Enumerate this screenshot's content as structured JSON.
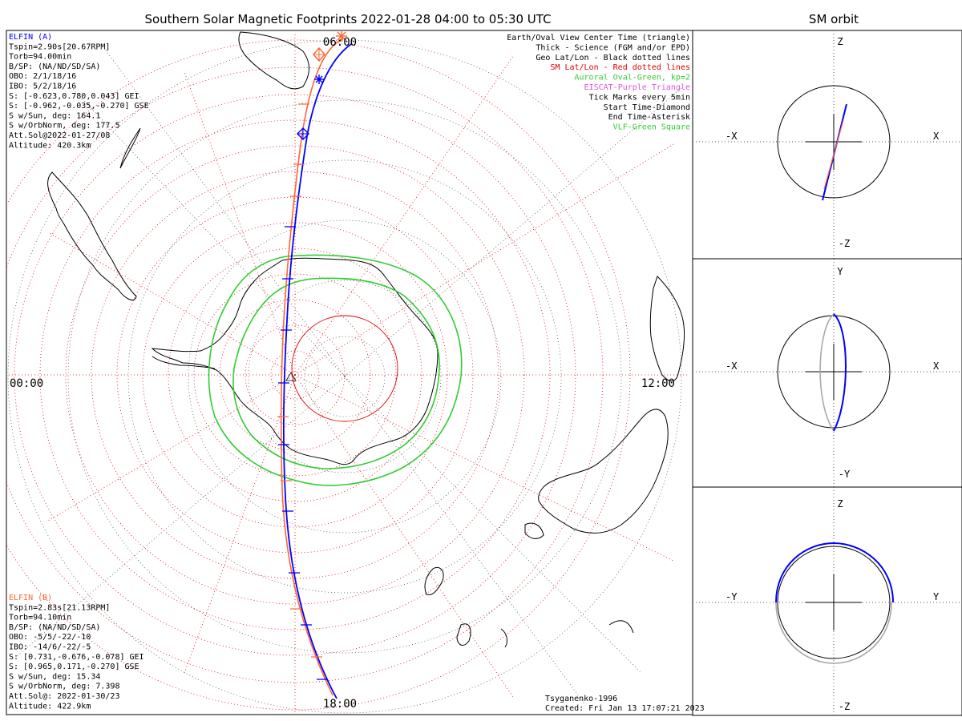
{
  "title": "Southern Solar Magnetic Footprints 2022-01-28 04:00 to 05:30 UTC",
  "orbit_title": "SM orbit",
  "map": {
    "labels": {
      "top": "06:00",
      "left": "00:00",
      "right": "12:00",
      "bottom": "18:00"
    },
    "legend": [
      {
        "text": "Earth/Oval View Center Time (triangle)",
        "color": "#000000"
      },
      {
        "text": "Thick - Science (FGM and/or EPD)",
        "color": "#000000"
      },
      {
        "text": "Geo Lat/Lon - Black dotted lines",
        "color": "#000000"
      },
      {
        "text": "SM Lat/Lon - Red dotted lines",
        "color": "#e00000"
      },
      {
        "text": "Auroral Oval-Green, kp=2",
        "color": "#33cc33"
      },
      {
        "text": "EISCAT-Purple Triangle",
        "color": "#dd55dd"
      },
      {
        "text": "Tick Marks every 5min",
        "color": "#000000"
      },
      {
        "text": "Start Time-Diamond",
        "color": "#000000"
      },
      {
        "text": "End Time-Asterisk",
        "color": "#000000"
      },
      {
        "text": "VLF-Green Square",
        "color": "#33cc33"
      }
    ],
    "elfin_a": {
      "name": "ELFIN (A)",
      "color": "#0000ff",
      "lines": [
        "Tspin=2.90s[20.67RPM]",
        "Torb=94.00min",
        "B/SP: (NA/ND/SD/SA)",
        "OBO: 2/1/18/16",
        "IBO: 5/2/18/16",
        "S: [-0.623,0.780,0.043] GEI",
        "S: [-0.962,-0.035,-0.270] GSE",
        "S w/Sun, deg: 164.1",
        "S w/OrbNorm, deg: 177.5",
        "Att.Sol@2022-01-27/08",
        "Altitude: 420.3km"
      ]
    },
    "elfin_b": {
      "name": "ELFIN (B)",
      "color": "#ff6633",
      "lines": [
        "Tspin=2.83s[21.13RPM]",
        "Torb=94.10min",
        "B/SP: (NA/ND/SD/SA)",
        "OBO: -5/5/-22/-10",
        "IBO: -14/6/-22/-5",
        "S: [0.731,-0.676,-0.078] GEI",
        "S: [0.965,0.171,-0.270] GSE",
        "S w/Sun, deg: 15.34",
        "S w/OrbNorm, deg: 7.398",
        "Att.Sol@: 2022-01-30/23",
        "Altitude: 422.9km"
      ]
    },
    "credits": [
      "Tsyganenko-1996",
      "Created: Fri Jan 13 17:07:21 2023"
    ]
  },
  "panels": [
    {
      "id": "xz",
      "left": "-X",
      "right": "X",
      "top": "Z",
      "bottom": "-Z"
    },
    {
      "id": "xy",
      "left": "-X",
      "right": "X",
      "top": "Y",
      "bottom": "-Y"
    },
    {
      "id": "yz",
      "left": "-Y",
      "right": "Y",
      "top": "Z",
      "bottom": "-Z"
    }
  ],
  "colors": {
    "elfin_a": "#0000ff",
    "elfin_b": "#ff6633",
    "sm_grid": "#e00000",
    "oval": "#33cc33",
    "geo_grid": "#000000"
  }
}
